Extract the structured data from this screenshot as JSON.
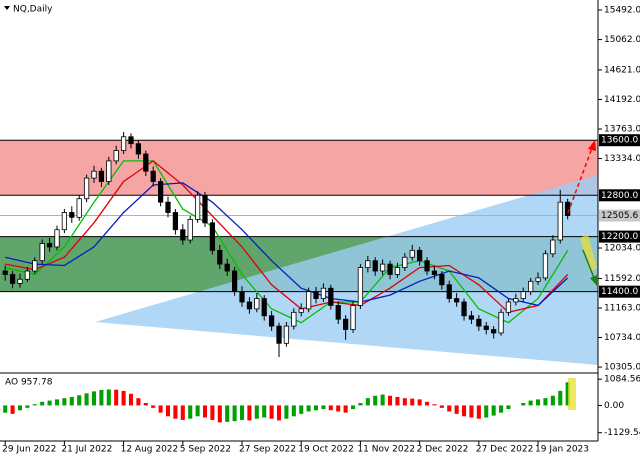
{
  "chart_data": [
    {
      "type": "candlestick",
      "title": "NQ,Daily",
      "open": [
        11700,
        11650,
        11520,
        11580,
        11700,
        11850,
        12100,
        12050,
        12300,
        12550,
        12480,
        12750,
        13050,
        13150,
        13000,
        13300,
        13450,
        13650,
        13550,
        13400,
        13150,
        13000,
        12700,
        12550,
        12300,
        12150,
        12450,
        12800,
        12400,
        12000,
        11800,
        11700,
        11400,
        11250,
        11150,
        11300,
        11050,
        10900,
        10650,
        10900,
        11100,
        11150,
        11400,
        11300,
        11450,
        11200,
        11000,
        10850,
        11200,
        11750,
        11850,
        11700,
        11800,
        11650,
        11750,
        11900,
        12000,
        11850,
        11700,
        11650,
        11500,
        11300,
        11250,
        11050,
        11000,
        10900,
        10850,
        10800,
        11100,
        11250,
        11300,
        11400,
        11550,
        11600,
        11950,
        12150,
        12700
      ],
      "high": [
        11780,
        11700,
        11660,
        11760,
        11900,
        12160,
        12180,
        12360,
        12600,
        12640,
        12800,
        13100,
        13230,
        13200,
        13360,
        13520,
        13720,
        13700,
        13600,
        13450,
        13220,
        13050,
        12780,
        12600,
        12380,
        12500,
        12860,
        12850,
        12450,
        12080,
        11880,
        11760,
        11480,
        11320,
        11380,
        11350,
        11120,
        10950,
        10960,
        11160,
        11230,
        11460,
        11470,
        11520,
        11500,
        11260,
        11060,
        11260,
        11800,
        11920,
        11900,
        11870,
        11850,
        11820,
        11960,
        12080,
        12050,
        11900,
        11780,
        11700,
        11560,
        11380,
        11300,
        11120,
        11060,
        10960,
        10900,
        11150,
        11300,
        11370,
        11460,
        11600,
        11680,
        12000,
        12220,
        12880,
        12750
      ],
      "low": [
        11560,
        11450,
        11460,
        11540,
        11660,
        11800,
        11980,
        12000,
        12250,
        12400,
        12430,
        12700,
        12980,
        12920,
        12950,
        13250,
        13400,
        13480,
        13330,
        13080,
        12930,
        12640,
        12480,
        12230,
        12080,
        12100,
        12400,
        12340,
        11940,
        11730,
        11630,
        11340,
        11180,
        11080,
        11100,
        10980,
        10830,
        10450,
        10600,
        10850,
        11040,
        11100,
        11230,
        11250,
        11140,
        10930,
        10700,
        10800,
        11150,
        11680,
        11630,
        11640,
        11580,
        11600,
        11700,
        11850,
        11780,
        11640,
        11580,
        11430,
        11240,
        11180,
        10980,
        10930,
        10830,
        10780,
        10720,
        10760,
        11050,
        11200,
        11250,
        11350,
        11500,
        11560,
        11900,
        12100,
        12450
      ],
      "close": [
        11650,
        11520,
        11580,
        11700,
        11850,
        12100,
        12050,
        12300,
        12550,
        12480,
        12750,
        13050,
        13150,
        13000,
        13300,
        13450,
        13650,
        13550,
        13400,
        13150,
        13000,
        12700,
        12550,
        12300,
        12150,
        12450,
        12800,
        12400,
        12000,
        11800,
        11700,
        11400,
        11250,
        11150,
        11300,
        11050,
        10900,
        10650,
        10900,
        11100,
        11150,
        11400,
        11300,
        11450,
        11200,
        11000,
        10850,
        11200,
        11750,
        11850,
        11700,
        11800,
        11650,
        11750,
        11900,
        12000,
        11850,
        11700,
        11650,
        11500,
        11300,
        11250,
        11050,
        11000,
        10900,
        10850,
        10800,
        11100,
        11250,
        11300,
        11400,
        11550,
        11600,
        11950,
        12150,
        12700,
        12505.6
      ],
      "up_color": "#ffffff",
      "down_color": "#000000",
      "xlim": [
        -0.7,
        80.1
      ],
      "xticks": [
        {
          "value": 0,
          "label": "29 Jun 2022"
        },
        {
          "value": 8,
          "label": "21 Jul 2022"
        },
        {
          "value": 16,
          "label": "12 Aug 2022"
        },
        {
          "value": 24,
          "label": "5 Sep 2022"
        },
        {
          "value": 32,
          "label": "27 Sep 2022"
        },
        {
          "value": 40,
          "label": "19 Oct 2022"
        },
        {
          "value": 48,
          "label": "11 Nov 2022"
        },
        {
          "value": 56,
          "label": "2 Dec 2022"
        },
        {
          "value": 64,
          "label": "27 Dec 2022"
        },
        {
          "value": 72,
          "label": "19 Jan 2023"
        }
      ],
      "ylim": [
        10233,
        15637
      ],
      "yticks": [
        {
          "value": 15492,
          "label": "15492.0"
        },
        {
          "value": 15062,
          "label": "15062.0"
        },
        {
          "value": 14621,
          "label": "14621.0"
        },
        {
          "value": 14192,
          "label": "14192.0"
        },
        {
          "value": 13763,
          "label": "13763.0"
        },
        {
          "value": 13334,
          "label": "13334.0"
        },
        {
          "value": 12034,
          "label": "12034.0"
        },
        {
          "value": 11592,
          "label": "11592.0"
        },
        {
          "value": 11163,
          "label": "11163.0"
        },
        {
          "value": 10734,
          "label": "10734.0"
        },
        {
          "value": 10305,
          "label": "10305.0"
        }
      ],
      "moving_averages": [
        {
          "color": "#00c000",
          "x": [
            0,
            4,
            8,
            12,
            16,
            20,
            24,
            28,
            32,
            36,
            40,
            44,
            48,
            52,
            56,
            60,
            64,
            68,
            72,
            76
          ],
          "values": [
            11750,
            11650,
            12050,
            12700,
            13300,
            13300,
            12600,
            12350,
            11650,
            11150,
            10950,
            11250,
            11250,
            11750,
            11850,
            11700,
            11150,
            10950,
            11300,
            12000
          ]
        },
        {
          "color": "#e00000",
          "x": [
            0,
            4,
            8,
            12,
            16,
            20,
            24,
            28,
            32,
            36,
            40,
            44,
            48,
            52,
            56,
            60,
            64,
            68,
            72,
            76
          ],
          "values": [
            11800,
            11720,
            11900,
            12400,
            13000,
            13300,
            12950,
            12500,
            12050,
            11500,
            11150,
            11250,
            11200,
            11450,
            11750,
            11780,
            11500,
            11100,
            11200,
            11650
          ]
        },
        {
          "color": "#0020c0",
          "x": [
            0,
            4,
            8,
            12,
            16,
            20,
            24,
            28,
            32,
            36,
            40,
            44,
            48,
            52,
            56,
            60,
            64,
            68,
            72,
            76
          ],
          "values": [
            11900,
            11800,
            11780,
            12050,
            12550,
            12950,
            12980,
            12700,
            12300,
            11850,
            11450,
            11300,
            11250,
            11350,
            11550,
            11700,
            11600,
            11300,
            11200,
            11600
          ]
        }
      ],
      "zones": [
        {
          "from": 12800,
          "to": 13600,
          "color": "#f6a5a5"
        },
        {
          "from": 11400,
          "to": 12200,
          "color": "#5fa56c"
        }
      ],
      "levels": [
        {
          "value": 13600,
          "label": "13600.0"
        },
        {
          "value": 12800,
          "label": "12800.0"
        },
        {
          "value": 12200,
          "label": "12200.0"
        },
        {
          "value": 11400,
          "label": "11400.0"
        }
      ],
      "last_price": 12505.6
    },
    {
      "type": "bar",
      "title": "AO 957.78",
      "values": [
        -300,
        -350,
        -200,
        -100,
        50,
        150,
        200,
        250,
        300,
        350,
        420,
        500,
        580,
        640,
        660,
        650,
        600,
        480,
        300,
        100,
        -100,
        -300,
        -450,
        -550,
        -600,
        -550,
        -450,
        -500,
        -600,
        -700,
        -680,
        -650,
        -600,
        -620,
        -550,
        -500,
        -550,
        -620,
        -550,
        -450,
        -350,
        -250,
        -200,
        -150,
        -200,
        -250,
        -300,
        -150,
        100,
        300,
        400,
        450,
        400,
        350,
        300,
        280,
        250,
        150,
        50,
        -100,
        -250,
        -350,
        -450,
        -500,
        -550,
        -500,
        -420,
        -300,
        -150,
        0,
        100,
        200,
        250,
        300,
        400,
        600,
        957.78
      ],
      "up_color": "#00a000",
      "down_color": "#ff0000",
      "ylim": [
        -1430,
        1300
      ],
      "yticks": [
        1084.56,
        {
          "value": 0,
          "label": "0.00"
        },
        -1129.54
      ]
    }
  ]
}
